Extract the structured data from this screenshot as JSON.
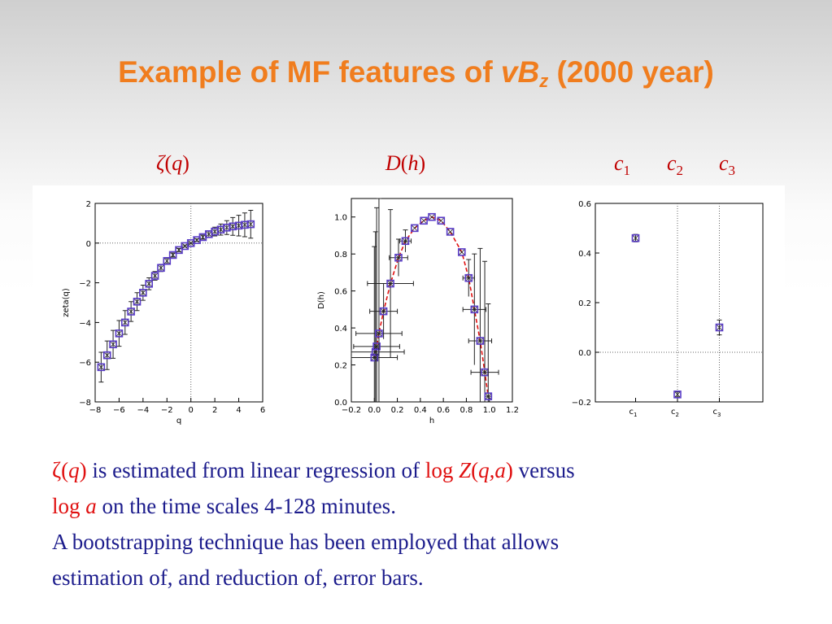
{
  "slide": {
    "title_prefix": "Example of MF features of ",
    "title_var": "vB",
    "title_sub": "z",
    "title_suffix": " (2000 year)"
  },
  "labels": {
    "zeta": {
      "sym": "ζ",
      "open": "(",
      "arg": "q",
      "close": ")"
    },
    "dh": {
      "sym": "D",
      "open": "(",
      "arg": "h",
      "close": ")"
    },
    "c1": {
      "sym": "c",
      "sub": "1"
    },
    "c2": {
      "sym": "c",
      "sub": "2"
    },
    "c3": {
      "sym": "c",
      "sub": "3"
    }
  },
  "caption": {
    "zeta_sym": "ζ(",
    "zeta_arg": "q",
    "zeta_close": ")",
    "part1": " is estimated from linear regression of ",
    "logz_log": "log ",
    "logz_Z": "Z",
    "logz_open": "(",
    "logz_args": "q,a",
    "logz_close": ")",
    "part2": " versus",
    "loga_log": "log ",
    "loga_a": "a",
    "part3": " on the time scales 4-128 minutes.",
    "line2": "A bootstrapping technique has been employed that allows",
    "line3": "estimation of, and reduction of, error bars."
  },
  "colors": {
    "title": "#f07d1e",
    "panel_labels": "#c00000",
    "caption_text": "#1c1c8c",
    "caption_highlight": "#e01010",
    "marker": "#5a3dc8",
    "fit_line": "#e01010"
  },
  "chart_data": [
    {
      "type": "scatter",
      "title": "",
      "xlabel": "q",
      "ylabel": "zeta(q)",
      "xlim": [
        -8,
        6
      ],
      "ylim": [
        -8,
        2
      ],
      "xticks": [
        "−8",
        "−6",
        "−4",
        "−2",
        "0",
        "2",
        "4",
        "6"
      ],
      "yticks": [
        "−8",
        "−6",
        "−4",
        "−2",
        "0",
        "2"
      ],
      "reference_lines": {
        "x": 0,
        "y": 0
      },
      "points": [
        {
          "x": -7.5,
          "y": -6.25,
          "err": 0.75
        },
        {
          "x": -7.0,
          "y": -5.65,
          "err": 0.72
        },
        {
          "x": -6.5,
          "y": -5.1,
          "err": 0.7
        },
        {
          "x": -6.0,
          "y": -4.55,
          "err": 0.65
        },
        {
          "x": -5.5,
          "y": -4.0,
          "err": 0.6
        },
        {
          "x": -5.0,
          "y": -3.45,
          "err": 0.5
        },
        {
          "x": -4.5,
          "y": -2.95,
          "err": 0.45
        },
        {
          "x": -4.0,
          "y": -2.5,
          "err": 0.38
        },
        {
          "x": -3.5,
          "y": -2.05,
          "err": 0.3
        },
        {
          "x": -3.0,
          "y": -1.65,
          "err": 0.22
        },
        {
          "x": -2.5,
          "y": -1.25,
          "err": 0.18
        },
        {
          "x": -2.0,
          "y": -0.9,
          "err": 0.14
        },
        {
          "x": -1.5,
          "y": -0.6,
          "err": 0.1
        },
        {
          "x": -1.0,
          "y": -0.35,
          "err": 0.08
        },
        {
          "x": -0.5,
          "y": -0.15,
          "err": 0.05
        },
        {
          "x": 0.0,
          "y": 0.0,
          "err": 0.04
        },
        {
          "x": 0.5,
          "y": 0.15,
          "err": 0.06
        },
        {
          "x": 1.0,
          "y": 0.3,
          "err": 0.1
        },
        {
          "x": 1.5,
          "y": 0.45,
          "err": 0.15
        },
        {
          "x": 2.0,
          "y": 0.58,
          "err": 0.22
        },
        {
          "x": 2.5,
          "y": 0.68,
          "err": 0.28
        },
        {
          "x": 3.0,
          "y": 0.78,
          "err": 0.35
        },
        {
          "x": 3.5,
          "y": 0.84,
          "err": 0.45
        },
        {
          "x": 4.0,
          "y": 0.88,
          "err": 0.52
        },
        {
          "x": 4.5,
          "y": 0.92,
          "err": 0.6
        },
        {
          "x": 5.0,
          "y": 0.95,
          "err": 0.7
        }
      ]
    },
    {
      "type": "scatter",
      "title": "",
      "xlabel": "h",
      "ylabel": "D(h)",
      "xlim": [
        -0.2,
        1.2
      ],
      "ylim": [
        0.0,
        1.1
      ],
      "xticks": [
        "−0.2",
        "0.0",
        "0.2",
        "0.4",
        "0.6",
        "0.8",
        "1.0",
        "1.2"
      ],
      "yticks": [
        "0.0",
        "0.2",
        "0.4",
        "0.6",
        "0.8",
        "1.0"
      ],
      "fit_line": "dashed",
      "points": [
        {
          "x": 0.0,
          "y": 0.24,
          "xerr": 0.2,
          "yerr": 0.6
        },
        {
          "x": 0.01,
          "y": 0.27,
          "xerr": 0.25,
          "yerr": 0.65
        },
        {
          "x": 0.02,
          "y": 0.3,
          "xerr": 0.2,
          "yerr": 0.75
        },
        {
          "x": 0.04,
          "y": 0.37,
          "xerr": 0.2,
          "yerr": 0.8
        },
        {
          "x": 0.08,
          "y": 0.49,
          "xerr": 0.12,
          "yerr": 0.15
        },
        {
          "x": 0.14,
          "y": 0.64,
          "xerr": 0.2,
          "yerr": 0.4
        },
        {
          "x": 0.21,
          "y": 0.78,
          "xerr": 0.08,
          "yerr": 0.1
        },
        {
          "x": 0.27,
          "y": 0.87,
          "xerr": 0.05,
          "yerr": 0.06
        },
        {
          "x": 0.35,
          "y": 0.94,
          "xerr": 0.0,
          "yerr": 0.0
        },
        {
          "x": 0.43,
          "y": 0.98,
          "xerr": 0.0,
          "yerr": 0.0
        },
        {
          "x": 0.5,
          "y": 1.0,
          "xerr": 0.0,
          "yerr": 0.0
        },
        {
          "x": 0.58,
          "y": 0.98,
          "xerr": 0.0,
          "yerr": 0.0
        },
        {
          "x": 0.66,
          "y": 0.92,
          "xerr": 0.0,
          "yerr": 0.0
        },
        {
          "x": 0.76,
          "y": 0.81,
          "xerr": 0.0,
          "yerr": 0.0
        },
        {
          "x": 0.82,
          "y": 0.67,
          "xerr": 0.05,
          "yerr": 0.1
        },
        {
          "x": 0.87,
          "y": 0.5,
          "xerr": 0.1,
          "yerr": 0.3
        },
        {
          "x": 0.92,
          "y": 0.33,
          "xerr": 0.1,
          "yerr": 0.5
        },
        {
          "x": 0.96,
          "y": 0.16,
          "xerr": 0.12,
          "yerr": 0.6
        },
        {
          "x": 0.99,
          "y": 0.03,
          "xerr": 0.03,
          "yerr": 0.5
        }
      ]
    },
    {
      "type": "scatter",
      "title": "",
      "xlabel": "",
      "ylabel": "",
      "categories": [
        "c1",
        "c2",
        "c3"
      ],
      "ylim": [
        -0.2,
        0.6
      ],
      "yticks": [
        "−0.2",
        "0.0",
        "0.2",
        "0.4",
        "0.6"
      ],
      "reference_lines": {
        "y": 0
      },
      "points": [
        {
          "x": "c1",
          "y": 0.46,
          "err": 0.015
        },
        {
          "x": "c2",
          "y": -0.17,
          "err": 0.01
        },
        {
          "x": "c3",
          "y": 0.1,
          "err": 0.03
        }
      ]
    }
  ]
}
